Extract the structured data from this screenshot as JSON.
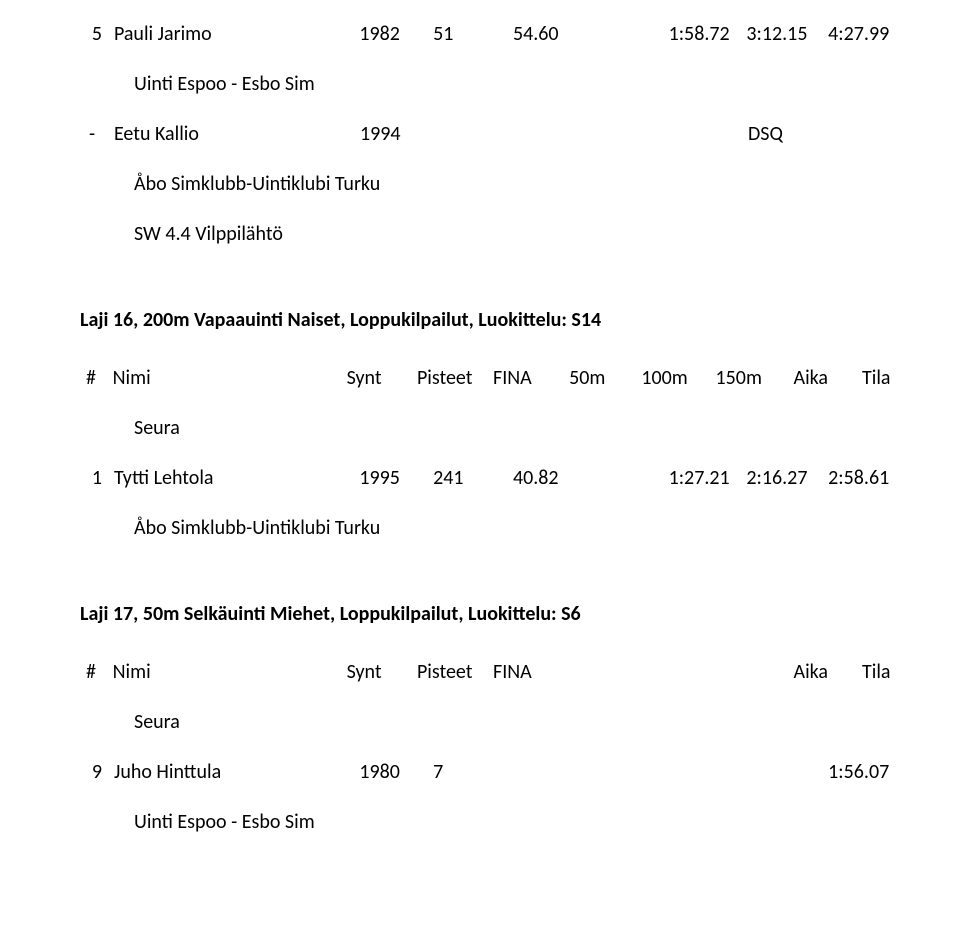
{
  "topRow": {
    "rank": "5",
    "name": "Pauli Jarimo",
    "synt": "1982",
    "pisteet": "51",
    "fina": "54.60",
    "t100": "1:58.72",
    "t150": "3:12.15",
    "aika": "4:27.99"
  },
  "topClub": "Uinti Espoo - Esbo Sim",
  "dsqRow": {
    "dash": "-",
    "name": "Eetu Kallio",
    "synt": "1994",
    "status": "DSQ"
  },
  "dsqClub": "Åbo Simklubb-Uintiklubi Turku",
  "dsqNote": "SW 4.4 Vilppilähtö",
  "event16": {
    "title": "Laji 16, 200m Vapaauinti Naiset, Loppukilpailut, Luokittelu: S14",
    "header": {
      "hash": "#",
      "name": "Nimi",
      "synt": "Synt",
      "pisteet": "Pisteet",
      "fina": "FINA",
      "s50": "50m",
      "s100": "100m",
      "s150": "150m",
      "aika": "Aika",
      "tila": "Tila"
    },
    "seura": "Seura",
    "row": {
      "rank": "1",
      "name": "Tytti Lehtola",
      "synt": "1995",
      "pisteet": "241",
      "fina": "40.82",
      "t100": "1:27.21",
      "t150": "2:16.27",
      "aika": "2:58.61"
    },
    "club": "Åbo Simklubb-Uintiklubi Turku"
  },
  "event17": {
    "title": "Laji 17, 50m Selkäuinti Miehet, Loppukilpailut, Luokittelu: S6",
    "header": {
      "hash": "#",
      "name": "Nimi",
      "synt": "Synt",
      "pisteet": "Pisteet",
      "fina": "FINA",
      "aika": "Aika",
      "tila": "Tila"
    },
    "seura": "Seura",
    "row": {
      "rank": "9",
      "name": "Juho Hinttula",
      "synt": "1980",
      "pisteet": "7",
      "aika": "1:56.07"
    },
    "club": "Uinti Espoo - Esbo Sim"
  }
}
